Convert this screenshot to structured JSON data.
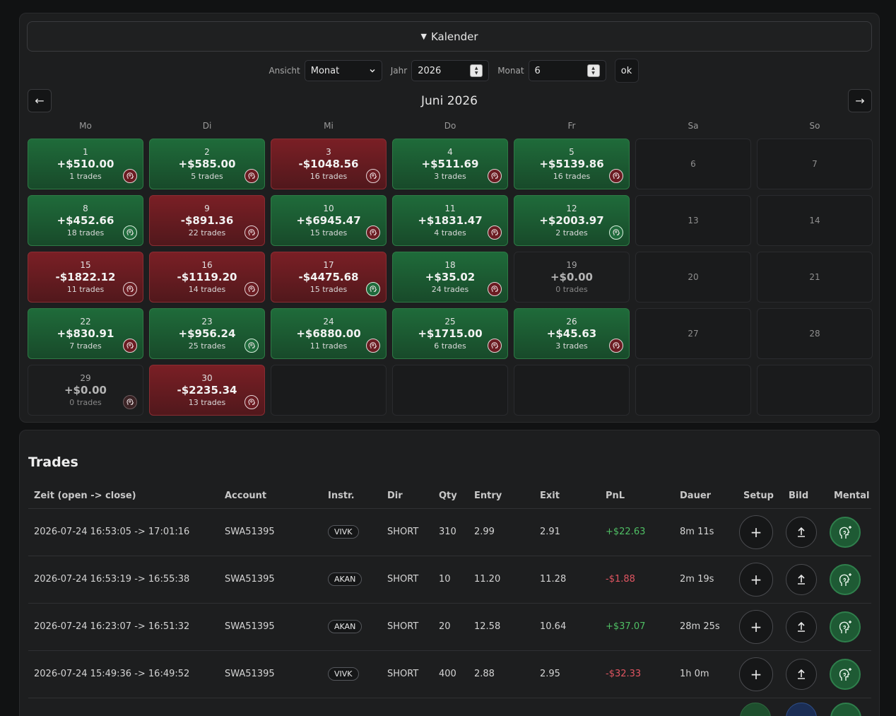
{
  "calendar": {
    "summary_label": "Kalender",
    "controls": {
      "view_label": "Ansicht",
      "view_value": "Monat",
      "year_label": "Jahr",
      "year_value": "2026",
      "month_label": "Monat",
      "month_value": "6",
      "ok_label": "ok"
    },
    "prev_label": "←",
    "next_label": "→",
    "month_title": "Juni 2026",
    "weekdays": [
      "Mo",
      "Di",
      "Mi",
      "Do",
      "Fr",
      "Sa",
      "So"
    ],
    "days": [
      {
        "day": "1",
        "pnl": "+$510.00",
        "trades": "1 trades",
        "type": "pos",
        "mental": "r"
      },
      {
        "day": "2",
        "pnl": "+$585.00",
        "trades": "5 trades",
        "type": "pos",
        "mental": "r"
      },
      {
        "day": "3",
        "pnl": "-$1048.56",
        "trades": "16 trades",
        "type": "neg",
        "mental": "r"
      },
      {
        "day": "4",
        "pnl": "+$511.69",
        "trades": "3 trades",
        "type": "pos",
        "mental": "r"
      },
      {
        "day": "5",
        "pnl": "+$5139.86",
        "trades": "16 trades",
        "type": "pos",
        "mental": "r"
      },
      {
        "day": "6",
        "type": "plain"
      },
      {
        "day": "7",
        "type": "plain"
      },
      {
        "day": "8",
        "pnl": "+$452.66",
        "trades": "18 trades",
        "type": "pos",
        "mental": "g"
      },
      {
        "day": "9",
        "pnl": "-$891.36",
        "trades": "22 trades",
        "type": "neg",
        "mental": "r"
      },
      {
        "day": "10",
        "pnl": "+$6945.47",
        "trades": "15 trades",
        "type": "pos",
        "mental": "r"
      },
      {
        "day": "11",
        "pnl": "+$1831.47",
        "trades": "4 trades",
        "type": "pos",
        "mental": "r"
      },
      {
        "day": "12",
        "pnl": "+$2003.97",
        "trades": "2 trades",
        "type": "pos",
        "mental": "g"
      },
      {
        "day": "13",
        "type": "plain"
      },
      {
        "day": "14",
        "type": "plain"
      },
      {
        "day": "15",
        "pnl": "-$1822.12",
        "trades": "11 trades",
        "type": "neg",
        "mental": "r"
      },
      {
        "day": "16",
        "pnl": "-$1119.20",
        "trades": "14 trades",
        "type": "neg",
        "mental": "r"
      },
      {
        "day": "17",
        "pnl": "-$4475.68",
        "trades": "15 trades",
        "type": "neg",
        "mental": "g"
      },
      {
        "day": "18",
        "pnl": "+$35.02",
        "trades": "24 trades",
        "type": "pos",
        "mental": "r"
      },
      {
        "day": "19",
        "pnl": "+$0.00",
        "trades": "0 trades",
        "type": "zero"
      },
      {
        "day": "20",
        "type": "plain"
      },
      {
        "day": "21",
        "type": "plain"
      },
      {
        "day": "22",
        "pnl": "+$830.91",
        "trades": "7 trades",
        "type": "pos",
        "mental": "r"
      },
      {
        "day": "23",
        "pnl": "+$956.24",
        "trades": "25 trades",
        "type": "pos",
        "mental": "g"
      },
      {
        "day": "24",
        "pnl": "+$6880.00",
        "trades": "11 trades",
        "type": "pos",
        "mental": "r"
      },
      {
        "day": "25",
        "pnl": "+$1715.00",
        "trades": "6 trades",
        "type": "pos",
        "mental": "r"
      },
      {
        "day": "26",
        "pnl": "+$45.63",
        "trades": "3 trades",
        "type": "pos",
        "mental": "r"
      },
      {
        "day": "27",
        "type": "plain"
      },
      {
        "day": "28",
        "type": "plain"
      },
      {
        "day": "29",
        "pnl": "+$0.00",
        "trades": "0 trades",
        "type": "zero",
        "mental": "faint"
      },
      {
        "day": "30",
        "pnl": "-$2235.34",
        "trades": "13 trades",
        "type": "neg",
        "mental": "r"
      },
      {
        "day": "",
        "type": "empty"
      },
      {
        "day": "",
        "type": "empty"
      },
      {
        "day": "",
        "type": "empty"
      },
      {
        "day": "",
        "type": "empty"
      },
      {
        "day": "",
        "type": "empty"
      }
    ],
    "colors": {
      "positive": "#1f6b3a",
      "negative": "#7a1f25"
    }
  },
  "trades": {
    "title": "Trades",
    "columns": [
      "Zeit (open -> close)",
      "Account",
      "Instr.",
      "Dir",
      "Qty",
      "Entry",
      "Exit",
      "PnL",
      "Dauer",
      "Setup",
      "Bild",
      "Mental"
    ],
    "rows": [
      {
        "time": "2026-07-24 16:53:05 -> 17:01:16",
        "account": "SWA51395",
        "instr": "VIVK",
        "dir": "SHORT",
        "qty": "310",
        "entry": "2.99",
        "exit": "2.91",
        "pnl": "+$22.63",
        "pnl_sign": "pos",
        "duration": "8m 11s"
      },
      {
        "time": "2026-07-24 16:53:19 -> 16:55:38",
        "account": "SWA51395",
        "instr": "AKAN",
        "dir": "SHORT",
        "qty": "10",
        "entry": "11.20",
        "exit": "11.28",
        "pnl": "-$1.88",
        "pnl_sign": "neg",
        "duration": "2m 19s"
      },
      {
        "time": "2026-07-24 16:23:07 -> 16:51:32",
        "account": "SWA51395",
        "instr": "AKAN",
        "dir": "SHORT",
        "qty": "20",
        "entry": "12.58",
        "exit": "10.64",
        "pnl": "+$37.07",
        "pnl_sign": "pos",
        "duration": "28m 25s"
      },
      {
        "time": "2026-07-24 15:49:36 -> 16:49:52",
        "account": "SWA51395",
        "instr": "VIVK",
        "dir": "SHORT",
        "qty": "400",
        "entry": "2.88",
        "exit": "2.95",
        "pnl": "-$32.33",
        "pnl_sign": "neg",
        "duration": "1h 0m"
      }
    ],
    "setup_icon": "plus-icon",
    "image_icon": "upload-icon",
    "mental_icon": "head-sparkle-icon"
  }
}
